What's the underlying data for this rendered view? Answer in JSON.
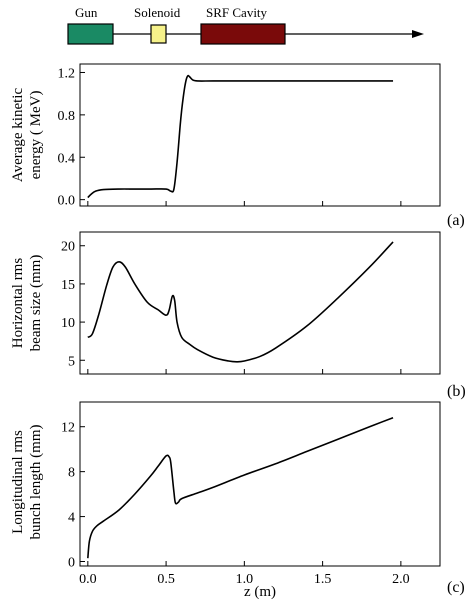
{
  "beamline": {
    "labels": [
      "Gun",
      "Solenoid",
      "SRF Cavity"
    ],
    "colors": {
      "gun": "#1a8a64",
      "solenoid": "#f6f28a",
      "cavity": "#7a0a0a"
    }
  },
  "panel_tags": [
    "(a)",
    "(b)",
    "(c)"
  ],
  "xlabel": "z (m)",
  "chart_data": [
    {
      "type": "line",
      "ylabel_lines": [
        "Average kinetic",
        "energy ( MeV)"
      ],
      "xlim": [
        -0.05,
        2.25
      ],
      "ylim": [
        -0.06,
        1.28
      ],
      "yticks": [
        0.0,
        0.4,
        0.8,
        1.2
      ],
      "ytick_labels": [
        "0.0",
        "0.4",
        "0.8",
        "1.2"
      ],
      "series": [
        {
          "x": [
            0.0,
            0.02,
            0.05,
            0.1,
            0.2,
            0.3,
            0.4,
            0.5,
            0.53,
            0.55,
            0.57,
            0.59,
            0.6,
            0.61,
            0.62,
            0.63,
            0.64,
            0.65,
            0.67,
            0.7,
            0.8,
            1.0,
            1.5,
            1.95
          ],
          "y": [
            0.02,
            0.05,
            0.08,
            0.095,
            0.1,
            0.1,
            0.1,
            0.1,
            0.08,
            0.1,
            0.35,
            0.7,
            0.85,
            0.97,
            1.07,
            1.14,
            1.17,
            1.16,
            1.13,
            1.12,
            1.12,
            1.12,
            1.12,
            1.12
          ]
        }
      ]
    },
    {
      "type": "line",
      "ylabel_lines": [
        "Horizontal rms",
        "beam size (mm)"
      ],
      "xlim": [
        -0.05,
        2.25
      ],
      "ylim": [
        3.2,
        21.8
      ],
      "yticks": [
        5,
        10,
        15,
        20
      ],
      "ytick_labels": [
        "5",
        "10",
        "15",
        "20"
      ],
      "series": [
        {
          "x": [
            0.0,
            0.03,
            0.07,
            0.12,
            0.16,
            0.2,
            0.24,
            0.3,
            0.38,
            0.45,
            0.5,
            0.52,
            0.54,
            0.555,
            0.57,
            0.6,
            0.65,
            0.7,
            0.8,
            0.9,
            0.95,
            1.0,
            1.1,
            1.2,
            1.4,
            1.6,
            1.8,
            1.95
          ],
          "y": [
            8.0,
            8.5,
            11.0,
            14.8,
            17.2,
            17.9,
            17.2,
            15.0,
            12.6,
            11.6,
            10.9,
            11.6,
            13.4,
            12.8,
            10.0,
            8.0,
            7.1,
            6.4,
            5.4,
            4.9,
            4.8,
            4.9,
            5.5,
            6.6,
            9.5,
            13.2,
            17.2,
            20.5
          ]
        }
      ]
    },
    {
      "type": "line",
      "ylabel_lines": [
        "Longitudinal rms",
        "bunch length (mm)"
      ],
      "xlim": [
        -0.05,
        2.25
      ],
      "ylim": [
        -0.4,
        14.2
      ],
      "yticks": [
        0,
        4,
        8,
        12
      ],
      "ytick_labels": [
        "0",
        "4",
        "8",
        "12"
      ],
      "series": [
        {
          "x": [
            0.0,
            0.01,
            0.03,
            0.06,
            0.1,
            0.2,
            0.3,
            0.4,
            0.45,
            0.5,
            0.52,
            0.53,
            0.55,
            0.56,
            0.58,
            0.6,
            0.7,
            0.8,
            1.0,
            1.2,
            1.4,
            1.6,
            1.8,
            1.95
          ],
          "y": [
            0.3,
            1.8,
            2.7,
            3.2,
            3.6,
            4.6,
            6.0,
            7.6,
            8.5,
            9.4,
            9.3,
            8.8,
            6.2,
            5.2,
            5.3,
            5.6,
            6.1,
            6.6,
            7.7,
            8.7,
            9.8,
            10.9,
            12.0,
            12.8
          ]
        }
      ]
    }
  ],
  "xticks": [
    0.0,
    0.5,
    1.0,
    1.5,
    2.0
  ],
  "xtick_labels": [
    "0.0",
    "0.5",
    "1.0",
    "1.5",
    "2.0"
  ]
}
